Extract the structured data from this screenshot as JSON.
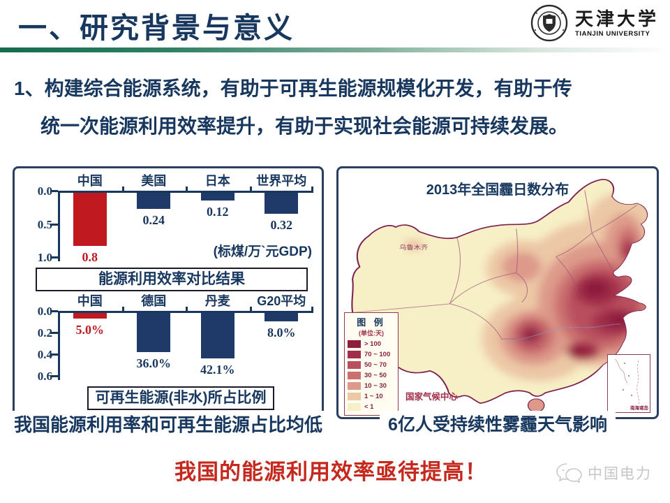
{
  "header": {
    "title": "一、研究背景与意义",
    "logo_cn": "天津大学",
    "logo_en": "TIANJIN UNIVERSITY"
  },
  "intro_line1": "1、构建综合能源系统，有助于可再生能源规模化开发，有助于传",
  "intro_line2": "统一次能源利用效率提升，有助于实现社会能源可持续发展。",
  "left_panel": {
    "caption": "我国能源利用率和可再生能源占比均低"
  },
  "right_panel": {
    "map_title": "2013年全国霾日数分布",
    "legend_title": "图 例",
    "legend_unit": "(单位:天)",
    "source": "国家气候中心",
    "city_label": "乌鲁木齐",
    "inset_label": "南海诸岛",
    "caption": "6亿人受持续性雾霾天气影响"
  },
  "footer": {
    "headline": "我国的能源利用效率亟待提高！",
    "watermark": "中国电力"
  },
  "colors": {
    "navy": "#17375e",
    "bar_navy": "#1f3a68",
    "red_bar": "#c01920",
    "red_text": "#c5281c",
    "green_accent": "#1d6e52",
    "map_base": "#f7efc6",
    "map_outline": "#7c2050"
  },
  "map_legend": [
    {
      "label": "> 100",
      "color": "#8c1f3d"
    },
    {
      "label": "70 ~ 100",
      "color": "#a32e4a"
    },
    {
      "label": "50 ~ 70",
      "color": "#b84f5e"
    },
    {
      "label": "30 ~ 50",
      "color": "#cb6f70"
    },
    {
      "label": "10 ~ 30",
      "color": "#dd9a8a"
    },
    {
      "label": "1 ~ 10",
      "color": "#ecc8a6"
    },
    {
      "label": "< 1",
      "color": "#f7efc6"
    }
  ],
  "chart_data": [
    {
      "type": "bar",
      "title": "能源利用效率对比结果",
      "unit_note": "(标煤/万`元GDP)",
      "categories": [
        "中国",
        "美国",
        "日本",
        "世界平均"
      ],
      "values": [
        0.8,
        0.24,
        0.12,
        0.32
      ],
      "value_labels": [
        "0.8",
        "0.24",
        "0.12",
        "0.32"
      ],
      "highlight_index": 0,
      "yticks": [
        0.0,
        0.5,
        1.0
      ],
      "ytick_labels": [
        "0.0",
        "0.5",
        "1.0"
      ],
      "ylim": [
        0,
        1.0
      ],
      "direction": "downward",
      "bar_color": "#1f3a68",
      "highlight_color": "#c01920",
      "grid": false,
      "xlabel": "",
      "ylabel": ""
    },
    {
      "type": "bar",
      "title": "可再生能源(非水)所占比例",
      "categories": [
        "中国",
        "德国",
        "丹麦",
        "G20平均"
      ],
      "values": [
        0.05,
        0.36,
        0.421,
        0.08
      ],
      "value_labels": [
        "5.0%",
        "36.0%",
        "42.1%",
        "8.0%"
      ],
      "highlight_index": 0,
      "yticks": [
        0.0,
        0.2,
        0.4,
        0.6
      ],
      "ytick_labels": [
        "0.0",
        "0.2",
        "0.4",
        "0.6"
      ],
      "ylim": [
        0,
        0.6
      ],
      "direction": "downward",
      "bar_color": "#1f3a68",
      "highlight_color": "#c01920",
      "grid": false,
      "xlabel": "",
      "ylabel": ""
    }
  ]
}
